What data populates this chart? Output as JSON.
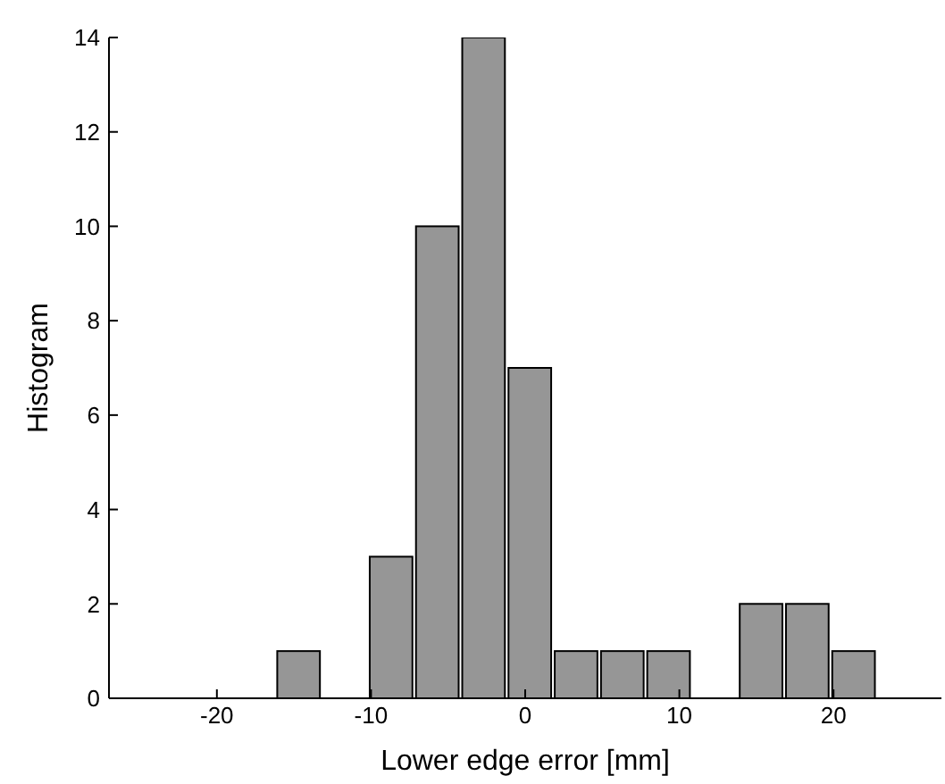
{
  "chart_data": {
    "type": "histogram",
    "xlabel": "Lower edge error [mm]",
    "ylabel": "Histogram",
    "bins": [
      -16.2,
      -13.2,
      -10.2,
      -7.2,
      -4.2,
      -1.2,
      1.8,
      4.8,
      7.8,
      10.8,
      13.8,
      16.8,
      19.8,
      22.8
    ],
    "values": [
      1,
      0,
      3,
      10,
      14,
      7,
      1,
      1,
      1,
      0,
      2,
      2,
      1
    ],
    "color": "#969696",
    "xlim": [
      -27,
      27
    ],
    "xticks": [
      -20,
      -10,
      0,
      10,
      20
    ],
    "ylim": [
      0,
      14
    ],
    "yticks": [
      0,
      2,
      4,
      6,
      8,
      10,
      12,
      14
    ],
    "grid": false
  }
}
